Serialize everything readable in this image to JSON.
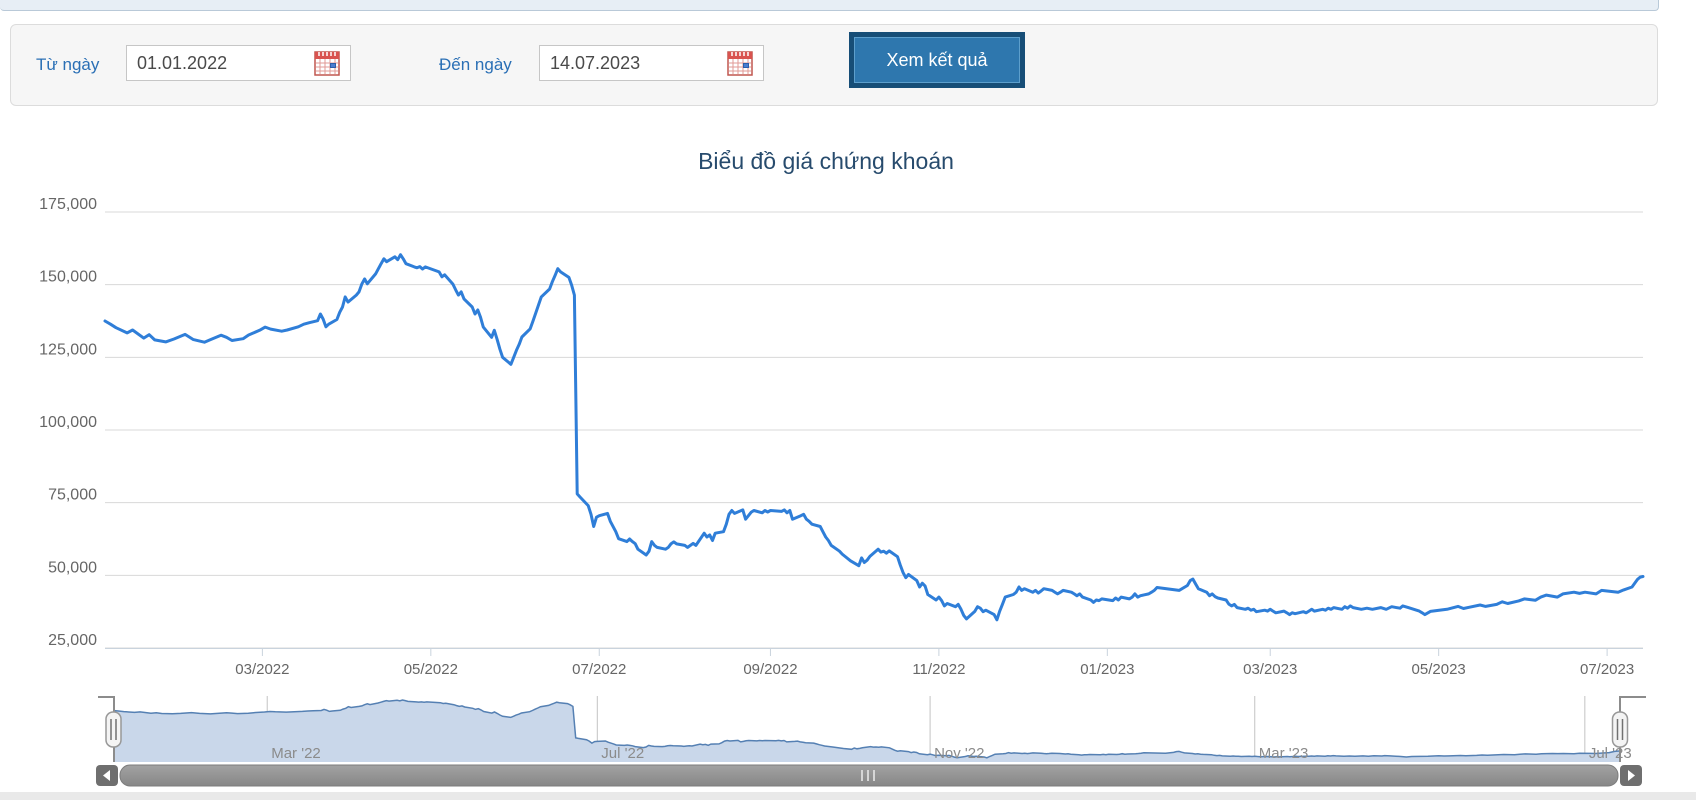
{
  "filter_bar": {
    "from_label": "Từ ngày",
    "from_value": "01.01.2022",
    "to_label": "Đến ngày",
    "to_value": "14.07.2023",
    "submit_label": "Xem kết quả"
  },
  "chart_data": {
    "type": "line",
    "title": "Biểu đồ giá chứng khoán",
    "xlabel": "",
    "ylabel": "",
    "legend": false,
    "grid": true,
    "ylim": [
      25000,
      175000
    ],
    "x_range": [
      "2022-01-03",
      "2023-07-14"
    ],
    "y_ticks": [
      {
        "value": 175000,
        "label": "175,000"
      },
      {
        "value": 150000,
        "label": "150,000"
      },
      {
        "value": 125000,
        "label": "125,000"
      },
      {
        "value": 100000,
        "label": "100,000"
      },
      {
        "value": 75000,
        "label": "75,000"
      },
      {
        "value": 50000,
        "label": "50,000"
      },
      {
        "value": 25000,
        "label": "25,000"
      }
    ],
    "x_ticks": [
      {
        "date": "2022-03-01",
        "label": "03/2022"
      },
      {
        "date": "2022-05-01",
        "label": "05/2022"
      },
      {
        "date": "2022-07-01",
        "label": "07/2022"
      },
      {
        "date": "2022-09-01",
        "label": "09/2022"
      },
      {
        "date": "2022-11-01",
        "label": "11/2022"
      },
      {
        "date": "2023-01-01",
        "label": "01/2023"
      },
      {
        "date": "2023-03-01",
        "label": "03/2023"
      },
      {
        "date": "2023-05-01",
        "label": "05/2023"
      },
      {
        "date": "2023-07-01",
        "label": "07/2023"
      }
    ],
    "navigator_ticks": [
      {
        "date": "2022-03-01",
        "label": "Mar '22"
      },
      {
        "date": "2022-07-01",
        "label": "Jul '22"
      },
      {
        "date": "2022-11-01",
        "label": "Nov '22"
      },
      {
        "date": "2023-03-01",
        "label": "Mar '23"
      },
      {
        "date": "2023-07-01",
        "label": "Jul '23"
      }
    ],
    "colors": {
      "line": "#2f7ed8",
      "grid": "#d8d8d8",
      "axis": "#c9d3dd",
      "tick_text": "#666666",
      "title_text": "#274b6d",
      "nav_fill": "#c9d7ea",
      "nav_line": "#5580b3",
      "nav_label": "#8b8b8b"
    },
    "points": [
      [
        "2022-01-03",
        137500
      ],
      [
        "2022-01-05",
        136400
      ],
      [
        "2022-01-07",
        135200
      ],
      [
        "2022-01-11",
        133400
      ],
      [
        "2022-01-13",
        134400
      ],
      [
        "2022-01-17",
        131600
      ],
      [
        "2022-01-19",
        132800
      ],
      [
        "2022-01-21",
        131000
      ],
      [
        "2022-01-25",
        130300
      ],
      [
        "2022-01-28",
        131300
      ],
      [
        "2022-02-01",
        132900
      ],
      [
        "2022-02-04",
        131100
      ],
      [
        "2022-02-08",
        130200
      ],
      [
        "2022-02-10",
        131000
      ],
      [
        "2022-02-14",
        132600
      ],
      [
        "2022-02-16",
        131900
      ],
      [
        "2022-02-18",
        130800
      ],
      [
        "2022-02-22",
        131400
      ],
      [
        "2022-02-24",
        132700
      ],
      [
        "2022-02-28",
        134300
      ],
      [
        "2022-03-02",
        135400
      ],
      [
        "2022-03-04",
        134700
      ],
      [
        "2022-03-08",
        134000
      ],
      [
        "2022-03-10",
        134400
      ],
      [
        "2022-03-14",
        135500
      ],
      [
        "2022-03-16",
        136400
      ],
      [
        "2022-03-18",
        136900
      ],
      [
        "2022-03-21",
        137600
      ],
      [
        "2022-03-22",
        139900
      ],
      [
        "2022-03-23",
        138200
      ],
      [
        "2022-03-24",
        135500
      ],
      [
        "2022-03-25",
        136400
      ],
      [
        "2022-03-28",
        138000
      ],
      [
        "2022-03-29",
        140500
      ],
      [
        "2022-03-30",
        142300
      ],
      [
        "2022-03-31",
        145800
      ],
      [
        "2022-04-01",
        144000
      ],
      [
        "2022-04-04",
        146400
      ],
      [
        "2022-04-05",
        147500
      ],
      [
        "2022-04-06",
        150200
      ],
      [
        "2022-04-07",
        152000
      ],
      [
        "2022-04-08",
        150300
      ],
      [
        "2022-04-11",
        153700
      ],
      [
        "2022-04-12",
        155500
      ],
      [
        "2022-04-13",
        157200
      ],
      [
        "2022-04-14",
        158900
      ],
      [
        "2022-04-15",
        157900
      ],
      [
        "2022-04-18",
        159600
      ],
      [
        "2022-04-19",
        158600
      ],
      [
        "2022-04-20",
        160300
      ],
      [
        "2022-04-21",
        158900
      ],
      [
        "2022-04-22",
        157200
      ],
      [
        "2022-04-25",
        156100
      ],
      [
        "2022-04-26",
        155800
      ],
      [
        "2022-04-27",
        156200
      ],
      [
        "2022-04-28",
        155400
      ],
      [
        "2022-04-29",
        156100
      ],
      [
        "2022-05-04",
        154400
      ],
      [
        "2022-05-05",
        152700
      ],
      [
        "2022-05-06",
        153400
      ],
      [
        "2022-05-09",
        150200
      ],
      [
        "2022-05-10",
        148200
      ],
      [
        "2022-05-11",
        146400
      ],
      [
        "2022-05-12",
        147500
      ],
      [
        "2022-05-13",
        145100
      ],
      [
        "2022-05-16",
        142300
      ],
      [
        "2022-05-17",
        139900
      ],
      [
        "2022-05-18",
        141300
      ],
      [
        "2022-05-19",
        138800
      ],
      [
        "2022-05-20",
        135400
      ],
      [
        "2022-05-23",
        131900
      ],
      [
        "2022-05-24",
        134300
      ],
      [
        "2022-05-25",
        131200
      ],
      [
        "2022-05-26",
        127800
      ],
      [
        "2022-05-27",
        125000
      ],
      [
        "2022-05-30",
        122600
      ],
      [
        "2022-05-31",
        125000
      ],
      [
        "2022-06-01",
        127400
      ],
      [
        "2022-06-02",
        129500
      ],
      [
        "2022-06-03",
        132000
      ],
      [
        "2022-06-06",
        134800
      ],
      [
        "2022-06-07",
        137500
      ],
      [
        "2022-06-08",
        140300
      ],
      [
        "2022-06-09",
        143000
      ],
      [
        "2022-06-10",
        145800
      ],
      [
        "2022-06-13",
        148500
      ],
      [
        "2022-06-14",
        151000
      ],
      [
        "2022-06-15",
        153200
      ],
      [
        "2022-06-16",
        155500
      ],
      [
        "2022-06-17",
        154400
      ],
      [
        "2022-06-20",
        152500
      ],
      [
        "2022-06-21",
        149900
      ],
      [
        "2022-06-22",
        146400
      ],
      [
        "2022-06-23",
        78000
      ],
      [
        "2022-06-24",
        77000
      ],
      [
        "2022-06-27",
        74000
      ],
      [
        "2022-06-28",
        71000
      ],
      [
        "2022-06-29",
        66800
      ],
      [
        "2022-06-30",
        70000
      ],
      [
        "2022-07-01",
        70500
      ],
      [
        "2022-07-04",
        71300
      ],
      [
        "2022-07-05",
        68600
      ],
      [
        "2022-07-07",
        65000
      ],
      [
        "2022-07-08",
        62600
      ],
      [
        "2022-07-11",
        61600
      ],
      [
        "2022-07-12",
        62500
      ],
      [
        "2022-07-13",
        61600
      ],
      [
        "2022-07-14",
        60900
      ],
      [
        "2022-07-15",
        59000
      ],
      [
        "2022-07-18",
        57000
      ],
      [
        "2022-07-19",
        58300
      ],
      [
        "2022-07-20",
        61600
      ],
      [
        "2022-07-21",
        60300
      ],
      [
        "2022-07-22",
        59600
      ],
      [
        "2022-07-25",
        59000
      ],
      [
        "2022-07-26",
        59600
      ],
      [
        "2022-07-27",
        60900
      ],
      [
        "2022-07-28",
        61500
      ],
      [
        "2022-07-29",
        60800
      ],
      [
        "2022-08-01",
        60300
      ],
      [
        "2022-08-02",
        59600
      ],
      [
        "2022-08-03",
        60300
      ],
      [
        "2022-08-04",
        61000
      ],
      [
        "2022-08-05",
        60300
      ],
      [
        "2022-08-08",
        64500
      ],
      [
        "2022-08-09",
        63200
      ],
      [
        "2022-08-10",
        63900
      ],
      [
        "2022-08-11",
        62000
      ],
      [
        "2022-08-12",
        64500
      ],
      [
        "2022-08-15",
        65000
      ],
      [
        "2022-08-16",
        67600
      ],
      [
        "2022-08-17",
        71000
      ],
      [
        "2022-08-18",
        72300
      ],
      [
        "2022-08-19",
        71300
      ],
      [
        "2022-08-22",
        72500
      ],
      [
        "2022-08-23",
        69300
      ],
      [
        "2022-08-24",
        70500
      ],
      [
        "2022-08-25",
        71700
      ],
      [
        "2022-08-26",
        72300
      ],
      [
        "2022-08-29",
        71500
      ],
      [
        "2022-08-30",
        72300
      ],
      [
        "2022-08-31",
        71800
      ],
      [
        "2022-09-01",
        72300
      ],
      [
        "2022-09-05",
        72000
      ],
      [
        "2022-09-06",
        72500
      ],
      [
        "2022-09-07",
        71500
      ],
      [
        "2022-09-08",
        72300
      ],
      [
        "2022-09-09",
        69300
      ],
      [
        "2022-09-12",
        70500
      ],
      [
        "2022-09-13",
        71000
      ],
      [
        "2022-09-14",
        69300
      ],
      [
        "2022-09-15",
        68600
      ],
      [
        "2022-09-16",
        67600
      ],
      [
        "2022-09-19",
        66800
      ],
      [
        "2022-09-20",
        65000
      ],
      [
        "2022-09-21",
        63200
      ],
      [
        "2022-09-22",
        62000
      ],
      [
        "2022-09-23",
        60300
      ],
      [
        "2022-09-26",
        58300
      ],
      [
        "2022-09-27",
        57300
      ],
      [
        "2022-09-28",
        56500
      ],
      [
        "2022-09-30",
        55000
      ],
      [
        "2022-10-03",
        53300
      ],
      [
        "2022-10-04",
        56000
      ],
      [
        "2022-10-05",
        54400
      ],
      [
        "2022-10-06",
        55200
      ],
      [
        "2022-10-07",
        56500
      ],
      [
        "2022-10-10",
        59000
      ],
      [
        "2022-10-11",
        58000
      ],
      [
        "2022-10-12",
        58300
      ],
      [
        "2022-10-13",
        57600
      ],
      [
        "2022-10-14",
        58400
      ],
      [
        "2022-10-17",
        56400
      ],
      [
        "2022-10-18",
        53600
      ],
      [
        "2022-10-19",
        51000
      ],
      [
        "2022-10-20",
        49200
      ],
      [
        "2022-10-21",
        50300
      ],
      [
        "2022-10-24",
        48200
      ],
      [
        "2022-10-25",
        46000
      ],
      [
        "2022-10-26",
        47300
      ],
      [
        "2022-10-27",
        46300
      ],
      [
        "2022-10-28",
        43400
      ],
      [
        "2022-10-31",
        41500
      ],
      [
        "2022-11-01",
        42500
      ],
      [
        "2022-11-02",
        41300
      ],
      [
        "2022-11-03",
        39500
      ],
      [
        "2022-11-04",
        40300
      ],
      [
        "2022-11-07",
        39200
      ],
      [
        "2022-11-08",
        40000
      ],
      [
        "2022-11-09",
        38300
      ],
      [
        "2022-11-10",
        36200
      ],
      [
        "2022-11-11",
        35000
      ],
      [
        "2022-11-14",
        37600
      ],
      [
        "2022-11-15",
        39200
      ],
      [
        "2022-11-16",
        38700
      ],
      [
        "2022-11-17",
        37500
      ],
      [
        "2022-11-18",
        38000
      ],
      [
        "2022-11-21",
        36500
      ],
      [
        "2022-11-22",
        34700
      ],
      [
        "2022-11-23",
        37600
      ],
      [
        "2022-11-24",
        40000
      ],
      [
        "2022-11-25",
        42500
      ],
      [
        "2022-11-28",
        43400
      ],
      [
        "2022-11-29",
        44200
      ],
      [
        "2022-11-30",
        46000
      ],
      [
        "2022-12-01",
        44800
      ],
      [
        "2022-12-02",
        45400
      ],
      [
        "2022-12-05",
        44200
      ],
      [
        "2022-12-06",
        44800
      ],
      [
        "2022-12-07",
        43900
      ],
      [
        "2022-12-08",
        44600
      ],
      [
        "2022-12-09",
        45400
      ],
      [
        "2022-12-12",
        44800
      ],
      [
        "2022-12-13",
        44200
      ],
      [
        "2022-12-14",
        43600
      ],
      [
        "2022-12-15",
        44200
      ],
      [
        "2022-12-16",
        44800
      ],
      [
        "2022-12-19",
        44200
      ],
      [
        "2022-12-20",
        43600
      ],
      [
        "2022-12-21",
        43000
      ],
      [
        "2022-12-22",
        43600
      ],
      [
        "2022-12-23",
        42500
      ],
      [
        "2022-12-26",
        41500
      ],
      [
        "2022-12-27",
        40700
      ],
      [
        "2022-12-28",
        41500
      ],
      [
        "2022-12-29",
        41300
      ],
      [
        "2022-12-30",
        41900
      ],
      [
        "2023-01-03",
        41300
      ],
      [
        "2023-01-04",
        42200
      ],
      [
        "2023-01-05",
        41500
      ],
      [
        "2023-01-06",
        42500
      ],
      [
        "2023-01-09",
        41900
      ],
      [
        "2023-01-10",
        42500
      ],
      [
        "2023-01-11",
        43600
      ],
      [
        "2023-01-12",
        42500
      ],
      [
        "2023-01-13",
        43000
      ],
      [
        "2023-01-16",
        43600
      ],
      [
        "2023-01-17",
        44200
      ],
      [
        "2023-01-18",
        44800
      ],
      [
        "2023-01-19",
        45800
      ],
      [
        "2023-01-27",
        44800
      ],
      [
        "2023-01-30",
        46500
      ],
      [
        "2023-01-31",
        48200
      ],
      [
        "2023-02-01",
        48700
      ],
      [
        "2023-02-02",
        47000
      ],
      [
        "2023-02-03",
        45400
      ],
      [
        "2023-02-06",
        44200
      ],
      [
        "2023-02-07",
        43000
      ],
      [
        "2023-02-08",
        43600
      ],
      [
        "2023-02-09",
        42700
      ],
      [
        "2023-02-10",
        42200
      ],
      [
        "2023-02-13",
        41500
      ],
      [
        "2023-02-14",
        40100
      ],
      [
        "2023-02-15",
        39500
      ],
      [
        "2023-02-16",
        40000
      ],
      [
        "2023-02-17",
        38900
      ],
      [
        "2023-02-20",
        38300
      ],
      [
        "2023-02-21",
        38700
      ],
      [
        "2023-02-22",
        38000
      ],
      [
        "2023-02-23",
        38300
      ],
      [
        "2023-02-24",
        37500
      ],
      [
        "2023-02-27",
        38000
      ],
      [
        "2023-02-28",
        37700
      ],
      [
        "2023-03-01",
        38300
      ],
      [
        "2023-03-02",
        37700
      ],
      [
        "2023-03-03",
        37100
      ],
      [
        "2023-03-06",
        37700
      ],
      [
        "2023-03-07",
        37100
      ],
      [
        "2023-03-08",
        36500
      ],
      [
        "2023-03-09",
        37100
      ],
      [
        "2023-03-10",
        36800
      ],
      [
        "2023-03-13",
        37500
      ],
      [
        "2023-03-14",
        37100
      ],
      [
        "2023-03-15",
        37700
      ],
      [
        "2023-03-16",
        38300
      ],
      [
        "2023-03-17",
        37700
      ],
      [
        "2023-03-20",
        38300
      ],
      [
        "2023-03-21",
        38000
      ],
      [
        "2023-03-22",
        38700
      ],
      [
        "2023-03-23",
        38300
      ],
      [
        "2023-03-24",
        38900
      ],
      [
        "2023-03-27",
        38300
      ],
      [
        "2023-03-28",
        39200
      ],
      [
        "2023-03-29",
        38700
      ],
      [
        "2023-03-30",
        39500
      ],
      [
        "2023-03-31",
        38900
      ],
      [
        "2023-04-03",
        38300
      ],
      [
        "2023-04-05",
        38700
      ],
      [
        "2023-04-07",
        38300
      ],
      [
        "2023-04-10",
        38900
      ],
      [
        "2023-04-12",
        38300
      ],
      [
        "2023-04-14",
        39200
      ],
      [
        "2023-04-17",
        38700
      ],
      [
        "2023-04-18",
        39500
      ],
      [
        "2023-04-20",
        38900
      ],
      [
        "2023-04-24",
        37700
      ],
      [
        "2023-04-25",
        37100
      ],
      [
        "2023-04-26",
        36500
      ],
      [
        "2023-04-28",
        37600
      ],
      [
        "2023-05-04",
        38300
      ],
      [
        "2023-05-08",
        39300
      ],
      [
        "2023-05-10",
        38600
      ],
      [
        "2023-05-12",
        39000
      ],
      [
        "2023-05-16",
        39800
      ],
      [
        "2023-05-18",
        39300
      ],
      [
        "2023-05-22",
        40000
      ],
      [
        "2023-05-24",
        40900
      ],
      [
        "2023-05-26",
        40300
      ],
      [
        "2023-05-30",
        41200
      ],
      [
        "2023-06-01",
        41900
      ],
      [
        "2023-06-05",
        41400
      ],
      [
        "2023-06-07",
        42500
      ],
      [
        "2023-06-09",
        43200
      ],
      [
        "2023-06-13",
        42500
      ],
      [
        "2023-06-15",
        43600
      ],
      [
        "2023-06-19",
        44200
      ],
      [
        "2023-06-21",
        43800
      ],
      [
        "2023-06-23",
        44200
      ],
      [
        "2023-06-27",
        43600
      ],
      [
        "2023-06-29",
        44800
      ],
      [
        "2023-07-03",
        44400
      ],
      [
        "2023-07-05",
        44200
      ],
      [
        "2023-07-07",
        45000
      ],
      [
        "2023-07-10",
        46000
      ],
      [
        "2023-07-12",
        48600
      ],
      [
        "2023-07-13",
        49400
      ],
      [
        "2023-07-14",
        49600
      ]
    ]
  }
}
